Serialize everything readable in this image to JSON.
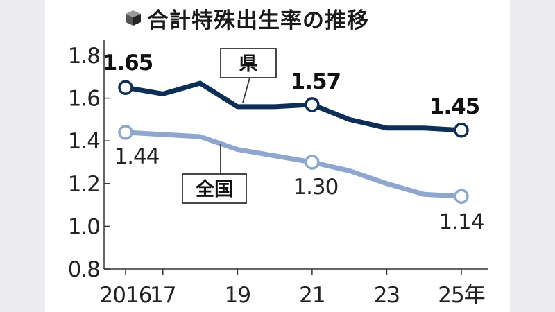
{
  "chart_data": {
    "type": "line",
    "title": "合計特殊出生率の推移",
    "x": [
      2016,
      2017,
      2018,
      2019,
      2020,
      2021,
      2022,
      2023,
      2024,
      2025
    ],
    "x_tick_labels": [
      {
        "x": 2016,
        "label": "2016"
      },
      {
        "x": 2017,
        "label": "17"
      },
      {
        "x": 2019,
        "label": "19"
      },
      {
        "x": 2021,
        "label": "21"
      },
      {
        "x": 2023,
        "label": "23"
      },
      {
        "x": 2025,
        "label": "25年"
      }
    ],
    "y_ticks": [
      "0.8",
      "1.0",
      "1.2",
      "1.4",
      "1.6",
      "1.8"
    ],
    "ylim": [
      0.8,
      1.8
    ],
    "grid": false,
    "series": [
      {
        "name": "県",
        "color": "#0d2f57",
        "values": [
          1.65,
          1.62,
          1.67,
          1.56,
          1.56,
          1.57,
          1.5,
          1.46,
          1.46,
          1.45
        ],
        "markers": [
          {
            "x": 2016,
            "value": 1.65,
            "label": "1.65"
          },
          {
            "x": 2021,
            "value": 1.57,
            "label": "1.57"
          },
          {
            "x": 2025,
            "value": 1.45,
            "label": "1.45"
          }
        ]
      },
      {
        "name": "全国",
        "color": "#8fa6cf",
        "values": [
          1.44,
          1.43,
          1.42,
          1.36,
          1.33,
          1.3,
          1.26,
          1.2,
          1.15,
          1.14
        ],
        "markers": [
          {
            "x": 2016,
            "value": 1.44,
            "label": "1.44"
          },
          {
            "x": 2021,
            "value": 1.3,
            "label": "1.30"
          },
          {
            "x": 2025,
            "value": 1.14,
            "label": "1.14"
          }
        ]
      }
    ]
  },
  "icons": {
    "title_icon": "cube-icon"
  }
}
